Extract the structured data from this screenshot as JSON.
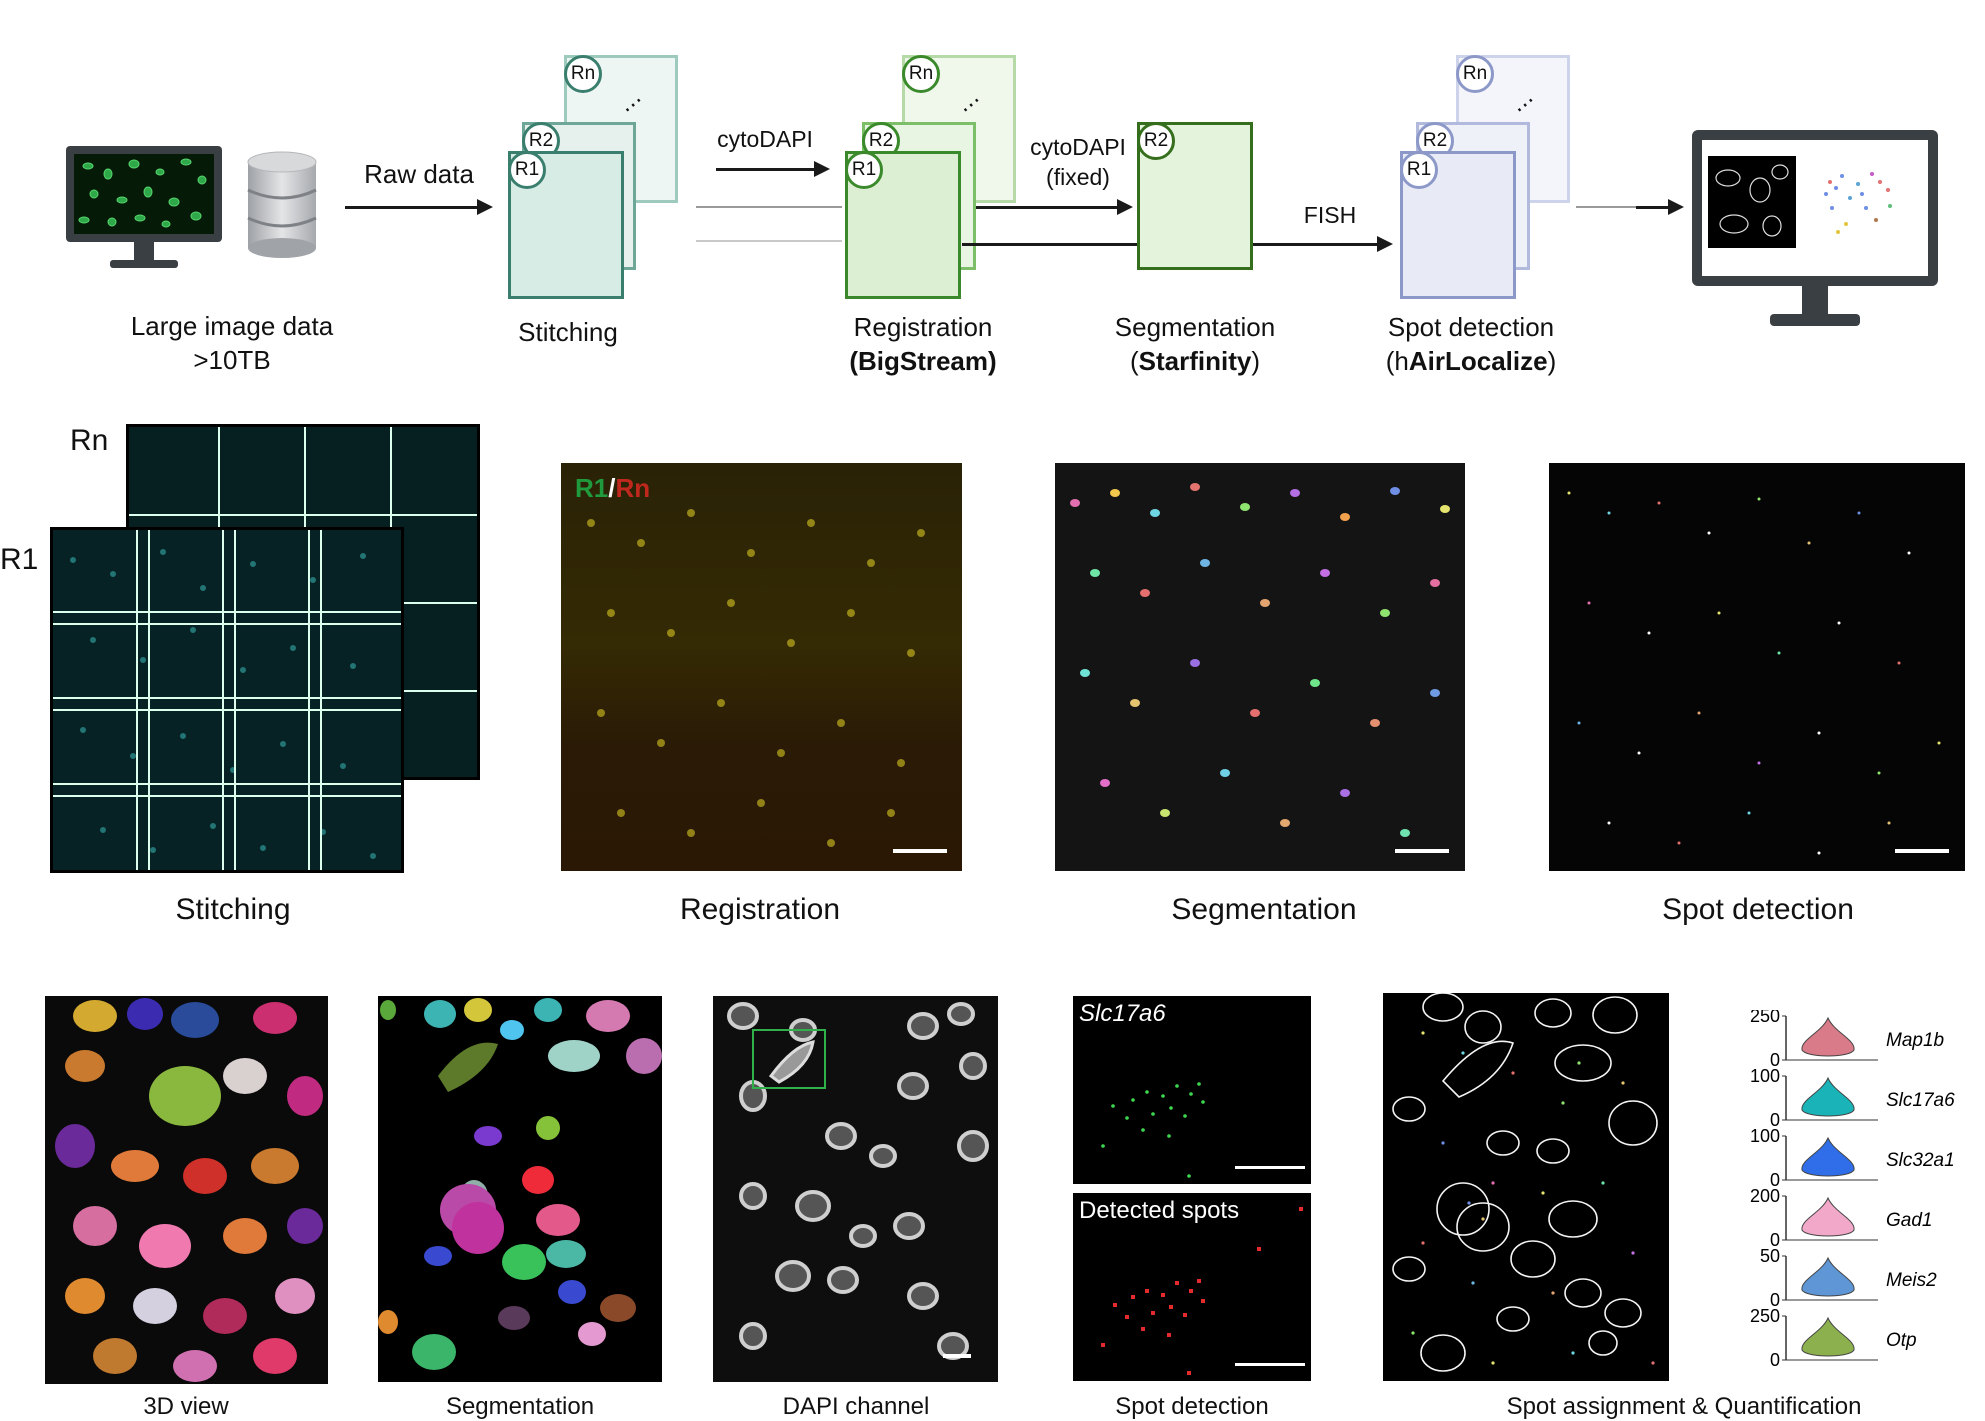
{
  "pipeline": {
    "source_label_1": "Large image data",
    "source_label_2": ">10TB",
    "raw_data": "Raw data",
    "stitching": "Stitching",
    "cytodapi_1": "cytoDAPI",
    "registration": "Registration",
    "registration_tool": "(BigStream)",
    "cytodapi_2_line1": "cytoDAPI",
    "cytodapi_2_line2": "(fixed)",
    "segmentation": "Segmentation",
    "segmentation_tool_open": "(",
    "segmentation_tool": "Starfinity",
    "segmentation_tool_close": ")",
    "fish": "FISH",
    "spot_detection": "Spot detection",
    "spot_tool_open": "(h",
    "spot_tool": "AirLocalize",
    "spot_tool_close": ")",
    "badges": {
      "r1": "R1",
      "r2": "R2",
      "rn": "Rn"
    },
    "colors": {
      "stitch": "#3a7f6e",
      "reg": "#3a8a2c",
      "seg": "#356e1c",
      "spot": "#8c98c8"
    }
  },
  "middle": {
    "rn_label": "Rn",
    "r1_label": "R1",
    "reg_overlay_r1": "R1",
    "reg_overlay_slash": "/",
    "reg_overlay_rn": "Rn",
    "labels": [
      "Stitching",
      "Registration",
      "Segmentation",
      "Spot detection"
    ]
  },
  "bottom": {
    "labels": [
      "3D view",
      "Segmentation",
      "DAPI channel",
      "Spot detection",
      "Spot assignment & Quantification"
    ],
    "slc_title": "Slc17a6",
    "detected_spots": "Detected spots"
  },
  "chart_data": {
    "type": "violin",
    "genes": [
      {
        "name": "Map1b",
        "ymax": 250,
        "ymin": 0,
        "color": "#d97b88"
      },
      {
        "name": "Slc17a6",
        "ymax": 100,
        "ymin": 0,
        "color": "#19b3b8"
      },
      {
        "name": "Slc32a1",
        "ymax": 100,
        "ymin": 0,
        "color": "#2f6ee8"
      },
      {
        "name": "Gad1",
        "ymax": 200,
        "ymin": 0,
        "color": "#f2a9c9"
      },
      {
        "name": "Meis2",
        "ymax": 50,
        "ymin": 0,
        "color": "#5e96d6"
      },
      {
        "name": "Otp",
        "ymax": 250,
        "ymin": 0,
        "color": "#8db04f"
      }
    ]
  }
}
